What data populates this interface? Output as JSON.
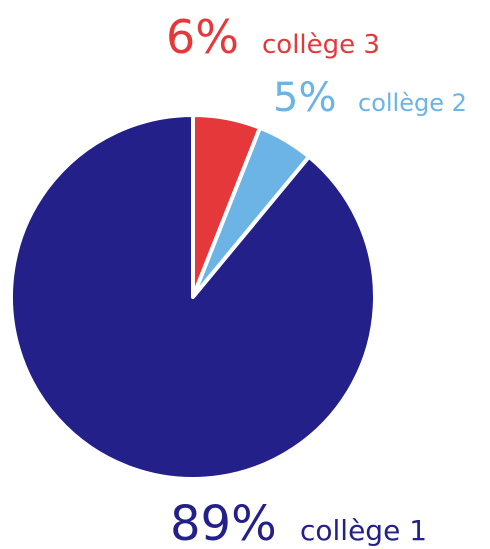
{
  "chart_data": {
    "type": "pie",
    "categories": [
      "collège 1",
      "collège 2",
      "collège 3"
    ],
    "values": [
      89,
      5,
      6
    ],
    "data_labels": [
      "89%",
      "5%",
      "6%"
    ],
    "colors": [
      "#232089",
      "#6cb4e6",
      "#e5383b"
    ],
    "start": "top, clockwise",
    "legend": "none",
    "title": ""
  }
}
